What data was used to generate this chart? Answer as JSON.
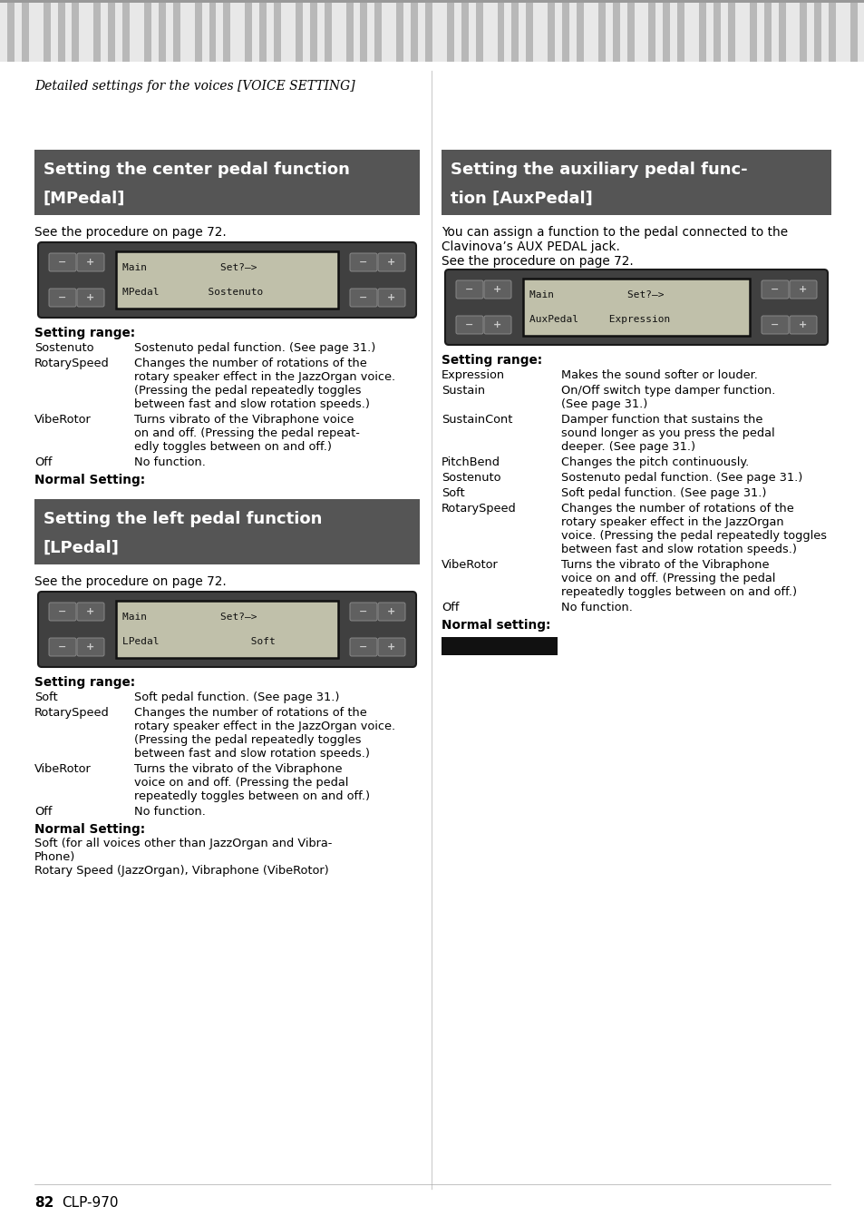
{
  "page_bg": "#ffffff",
  "header_text": "Detailed settings for the voices [VOICE SETTING]",
  "section1_title_line1": "Setting the center pedal function",
  "section1_title_line2": "[MPedal]",
  "section1_bg": "#555555",
  "section1_text_color": "#ffffff",
  "section1_intro": "See the procedure on page 72.",
  "section1_display_line1": "Main            Set?—>",
  "section1_display_line2": "MPedal        Sostenuto",
  "section1_setting_range_label": "Setting range:",
  "section1_settings": [
    [
      "Sostenuto",
      "Sostenuto pedal function. (See page 31.)"
    ],
    [
      "RotarySpeed",
      "Changes the number of rotations of the\nrotary speaker effect in the JazzOrgan voice.\n(Pressing the pedal repeatedly toggles\nbetween fast and slow rotation speeds.)"
    ],
    [
      "VibeRotor",
      "Turns vibrato of the Vibraphone voice\non and off. (Pressing the pedal repeat-\nedly toggles between on and off.)"
    ],
    [
      "Off",
      "No function."
    ]
  ],
  "section1_normal_setting": "Normal Setting:",
  "section2_title_line1": "Setting the left pedal function",
  "section2_title_line2": "[LPedal]",
  "section2_bg": "#555555",
  "section2_text_color": "#ffffff",
  "section2_intro": "See the procedure on page 72.",
  "section2_display_line1": "Main            Set?—>",
  "section2_display_line2": "LPedal               Soft",
  "section2_setting_range_label": "Setting range:",
  "section2_settings": [
    [
      "Soft",
      "Soft pedal function. (See page 31.)"
    ],
    [
      "RotarySpeed",
      "Changes the number of rotations of the\nrotary speaker effect in the JazzOrgan voice.\n(Pressing the pedal repeatedly toggles\nbetween fast and slow rotation speeds.)"
    ],
    [
      "VibeRotor",
      "Turns the vibrato of the Vibraphone\nvoice on and off. (Pressing the pedal\nrepeatedly toggles between on and off.)"
    ],
    [
      "Off",
      "No function."
    ]
  ],
  "section2_normal_setting": "Normal Setting:",
  "section2_normal_text": "Soft (for all voices other than JazzOrgan and Vibra-\nPhone)\nRotary Speed (JazzOrgan), Vibraphone (VibeRotor)",
  "section3_title_line1": "Setting the auxiliary pedal func-",
  "section3_title_line2": "tion [AuxPedal]",
  "section3_bg": "#555555",
  "section3_text_color": "#ffffff",
  "section3_intro_line1": "You can assign a function to the pedal connected to the",
  "section3_intro_line2": "Clavinova’s AUX PEDAL jack.",
  "section3_intro_line3": "See the procedure on page 72.",
  "section3_display_line1": "Main            Set?—>",
  "section3_display_line2": "AuxPedal     Expression",
  "section3_setting_range_label": "Setting range:",
  "section3_settings": [
    [
      "Expression",
      "Makes the sound softer or louder."
    ],
    [
      "Sustain",
      "On/Off switch type damper function.\n(See page 31.)"
    ],
    [
      "SustainCont",
      "Damper function that sustains the\nsound longer as you press the pedal\ndeeper. (See page 31.)"
    ],
    [
      "PitchBend",
      "Changes the pitch continuously."
    ],
    [
      "Sostenuto",
      "Sostenuto pedal function. (See page 31.)"
    ],
    [
      "Soft",
      "Soft pedal function. (See page 31.)"
    ],
    [
      "RotarySpeed",
      "Changes the number of rotations of the\nrotary speaker effect in the JazzOrgan\nvoice. (Pressing the pedal repeatedly toggles\nbetween fast and slow rotation speeds.)"
    ],
    [
      "VibeRotor",
      "Turns the vibrato of the Vibraphone\nvoice on and off. (Pressing the pedal\nrepeatedly toggles between on and off.)"
    ],
    [
      "Off",
      "No function."
    ]
  ],
  "section3_normal_setting": "Normal setting:",
  "page_number": "82",
  "page_model": "CLP-970",
  "display_bg": "#c0c0aa",
  "display_outer_bg": "#404040",
  "button_bg": "#606060",
  "button_border": "#888888",
  "stripe_light": "#e8e8e8",
  "stripe_dark": "#b8b8b8"
}
